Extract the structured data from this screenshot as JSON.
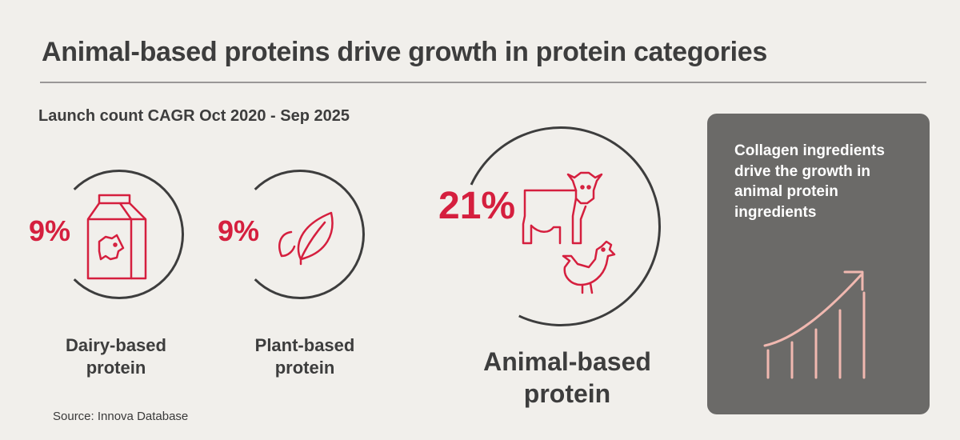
{
  "title": "Animal-based proteins drive growth in protein categories",
  "subtitle": "Launch count CAGR Oct 2020 - Sep 2025",
  "colors": {
    "accent": "#d51f3e",
    "text": "#3d3d3d",
    "panel": "#6b6a68",
    "chart_icon": "#f0b8b0"
  },
  "categories": [
    {
      "value": "9%",
      "label_line1": "Dairy-based",
      "label_line2": "protein",
      "icon": "milk-carton-icon"
    },
    {
      "value": "9%",
      "label_line1": "Plant-based",
      "label_line2": "protein",
      "icon": "leaf-icon"
    },
    {
      "value": "21%",
      "label_line1": "Animal-based",
      "label_line2": "protein",
      "icon": "cow-chicken-icon"
    }
  ],
  "panel": {
    "text": "Collagen ingredients drive the growth in animal protein ingredients",
    "icon": "growth-chart-icon"
  },
  "source": "Source: Innova Database"
}
